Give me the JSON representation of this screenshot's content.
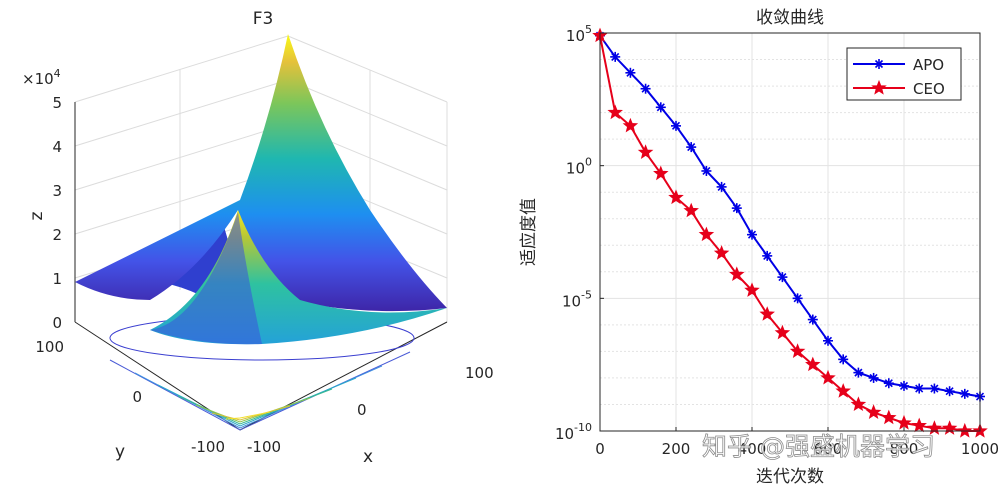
{
  "chart_data": [
    {
      "type": "surface",
      "title": "F3",
      "xlabel": "x",
      "ylabel": "y",
      "zlabel": "z",
      "z_exponent": "4",
      "x_ticks": [
        "-100",
        "0",
        "100"
      ],
      "y_ticks": [
        "-100",
        "0",
        "100"
      ],
      "z_ticks": [
        "0",
        "1",
        "2",
        "3",
        "4",
        "5"
      ],
      "x_range": [
        -100,
        100
      ],
      "y_range": [
        -100,
        100
      ],
      "z_range": [
        0,
        50000
      ],
      "surface_function": "|x|^2 + |y|^2 + |x|*|y| (approx.)",
      "colormap": "parula",
      "contour_below": true,
      "grid": true
    },
    {
      "type": "line",
      "title": "收敛曲线",
      "xlabel": "迭代次数",
      "ylabel": "适应度值",
      "x_ticks": [
        "0",
        "200",
        "400",
        "600",
        "800",
        "1000"
      ],
      "xlim": [
        0,
        1000
      ],
      "ylim_exp": [
        -10,
        5
      ],
      "yscale": "log",
      "y_ticks": [
        {
          "exp": 5,
          "base": "10",
          "sup": "5"
        },
        {
          "exp": 0,
          "base": "10",
          "sup": "0"
        },
        {
          "exp": -5,
          "base": "10",
          "sup": "-5"
        },
        {
          "exp": -10,
          "base": "10",
          "sup": "-10"
        }
      ],
      "grid": true,
      "legend_position": "top-right",
      "x": [
        0,
        40,
        80,
        120,
        160,
        200,
        240,
        280,
        320,
        360,
        400,
        440,
        480,
        520,
        560,
        600,
        640,
        680,
        720,
        760,
        800,
        840,
        880,
        920,
        960,
        1000
      ],
      "series": [
        {
          "name": "APO",
          "color": "#0000e6",
          "marker": "asterisk",
          "log10_values": [
            4.9,
            4.1,
            3.5,
            2.9,
            2.2,
            1.5,
            0.7,
            -0.2,
            -0.8,
            -1.6,
            -2.6,
            -3.4,
            -4.2,
            -5.0,
            -5.8,
            -6.6,
            -7.3,
            -7.8,
            -8.0,
            -8.2,
            -8.3,
            -8.4,
            -8.4,
            -8.5,
            -8.6,
            -8.7
          ]
        },
        {
          "name": "CEO",
          "color": "#e6001a",
          "marker": "pentagram",
          "log10_values": [
            4.9,
            2.0,
            1.5,
            0.5,
            -0.3,
            -1.2,
            -1.7,
            -2.6,
            -3.3,
            -4.1,
            -4.7,
            -5.6,
            -6.3,
            -7.0,
            -7.5,
            -8.0,
            -8.5,
            -9.0,
            -9.3,
            -9.5,
            -9.7,
            -9.8,
            -9.9,
            -9.9,
            -10.0,
            -10.0
          ]
        }
      ]
    }
  ],
  "watermark": "知乎 @强盛机器学习"
}
